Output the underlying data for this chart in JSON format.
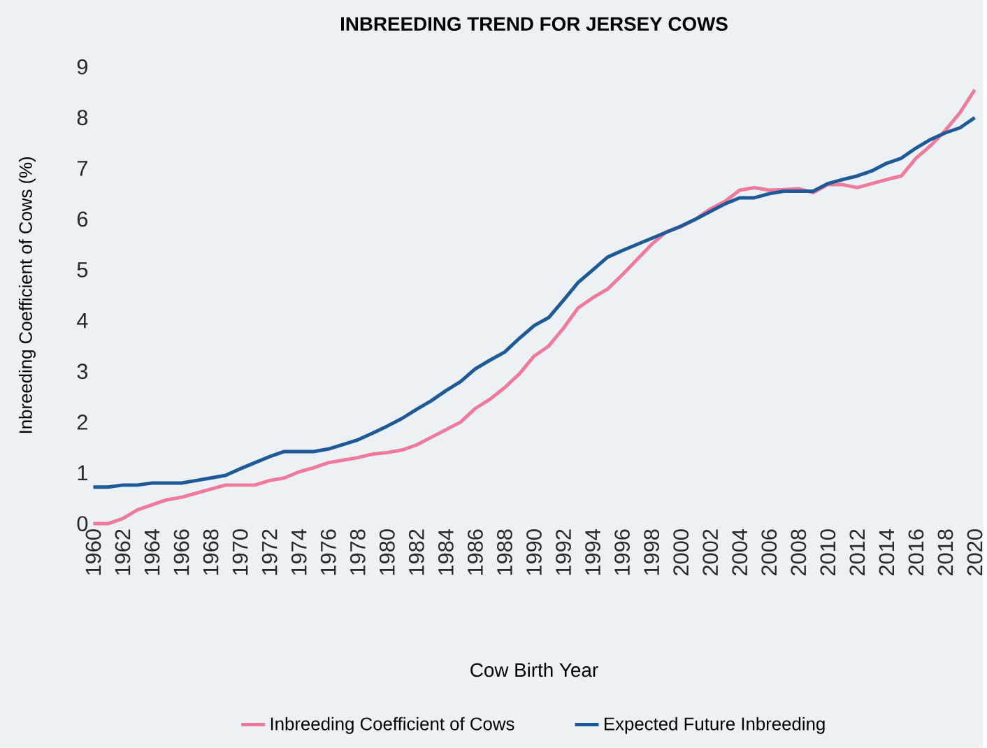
{
  "chart_data": {
    "type": "line",
    "title": "INBREEDING TREND FOR JERSEY COWS",
    "xlabel": "Cow Birth Year",
    "ylabel": "Inbreeding Coefficient of Cows (%)",
    "x": [
      1960,
      1961,
      1962,
      1963,
      1964,
      1965,
      1966,
      1967,
      1968,
      1969,
      1970,
      1971,
      1972,
      1973,
      1974,
      1975,
      1976,
      1977,
      1978,
      1979,
      1980,
      1981,
      1982,
      1983,
      1984,
      1985,
      1986,
      1987,
      1988,
      1989,
      1990,
      1991,
      1992,
      1993,
      1994,
      1995,
      1996,
      1997,
      1998,
      1999,
      2000,
      2001,
      2002,
      2003,
      2004,
      2005,
      2006,
      2007,
      2008,
      2009,
      2010,
      2011,
      2012,
      2013,
      2014,
      2015,
      2016,
      2017,
      2018,
      2019,
      2020
    ],
    "series": [
      {
        "name": "Inbreeding Coefficient of Cows",
        "color": "#ef7a9c",
        "values": [
          0,
          0,
          0.1,
          0.27,
          0.37,
          0.47,
          0.52,
          0.6,
          0.68,
          0.76,
          0.76,
          0.76,
          0.85,
          0.9,
          1.02,
          1.1,
          1.2,
          1.25,
          1.3,
          1.37,
          1.4,
          1.45,
          1.55,
          1.7,
          1.85,
          2.0,
          2.27,
          2.45,
          2.68,
          2.95,
          3.3,
          3.5,
          3.85,
          4.25,
          4.45,
          4.62,
          4.9,
          5.2,
          5.5,
          5.75,
          5.85,
          6.0,
          6.2,
          6.35,
          6.57,
          6.62,
          6.57,
          6.58,
          6.6,
          6.52,
          6.68,
          6.68,
          6.62,
          6.7,
          6.78,
          6.85,
          7.2,
          7.45,
          7.75,
          8.1,
          8.55
        ]
      },
      {
        "name": "Expected Future Inbreeding",
        "color": "#1f5a96",
        "values": [
          0.72,
          0.72,
          0.76,
          0.76,
          0.8,
          0.8,
          0.8,
          0.85,
          0.9,
          0.95,
          1.08,
          1.2,
          1.32,
          1.42,
          1.42,
          1.42,
          1.47,
          1.56,
          1.65,
          1.78,
          1.92,
          2.07,
          2.25,
          2.42,
          2.62,
          2.8,
          3.05,
          3.22,
          3.38,
          3.65,
          3.9,
          4.06,
          4.4,
          4.75,
          5.0,
          5.25,
          5.38,
          5.5,
          5.62,
          5.74,
          5.86,
          6.0,
          6.15,
          6.3,
          6.42,
          6.42,
          6.5,
          6.55,
          6.55,
          6.55,
          6.7,
          6.78,
          6.85,
          6.95,
          7.1,
          7.2,
          7.4,
          7.57,
          7.7,
          7.8,
          8.0
        ]
      }
    ],
    "xlim": [
      1960,
      2020
    ],
    "xticks": [
      1960,
      1962,
      1964,
      1966,
      1968,
      1970,
      1972,
      1974,
      1976,
      1978,
      1980,
      1982,
      1984,
      1986,
      1988,
      1990,
      1992,
      1994,
      1996,
      1998,
      2000,
      2002,
      2004,
      2006,
      2008,
      2010,
      2012,
      2014,
      2016,
      2018,
      2020
    ],
    "ylim": [
      0,
      9
    ],
    "yticks": [
      0,
      1,
      2,
      3,
      4,
      5,
      6,
      7,
      8,
      9
    ],
    "grid": false,
    "legend": "bottom",
    "marker": "none",
    "line_style": "solid"
  }
}
